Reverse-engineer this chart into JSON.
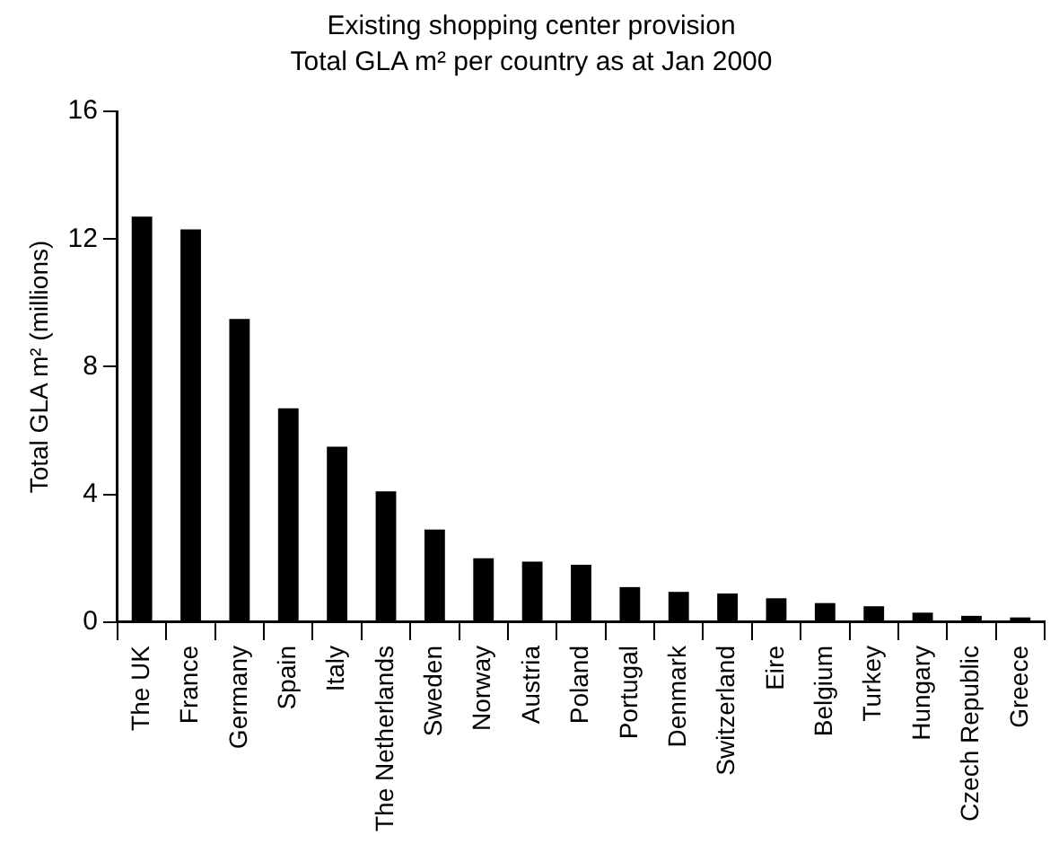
{
  "chart_data": {
    "type": "bar",
    "title": "Existing shopping center provision",
    "subtitle": "Total GLA m² per country as at Jan 2000",
    "ylabel": "Total GLA m² (millions)",
    "categories": [
      "The UK",
      "France",
      "Germany",
      "Spain",
      "Italy",
      "The Netherlands",
      "Sweden",
      "Norway",
      "Austria",
      "Poland",
      "Portugal",
      "Denmark",
      "Switzerland",
      "Eire",
      "Belgium",
      "Turkey",
      "Hungary",
      "Czech Republic",
      "Greece"
    ],
    "values": [
      12.7,
      12.3,
      9.5,
      6.7,
      5.5,
      4.1,
      2.9,
      2.0,
      1.9,
      1.8,
      1.1,
      0.95,
      0.9,
      0.75,
      0.6,
      0.5,
      0.3,
      0.2,
      0.15
    ],
    "color": "#000000",
    "ylim": [
      0,
      16
    ],
    "yticks": [
      0,
      4,
      8,
      12,
      16
    ],
    "grid": false,
    "legend": false
  }
}
